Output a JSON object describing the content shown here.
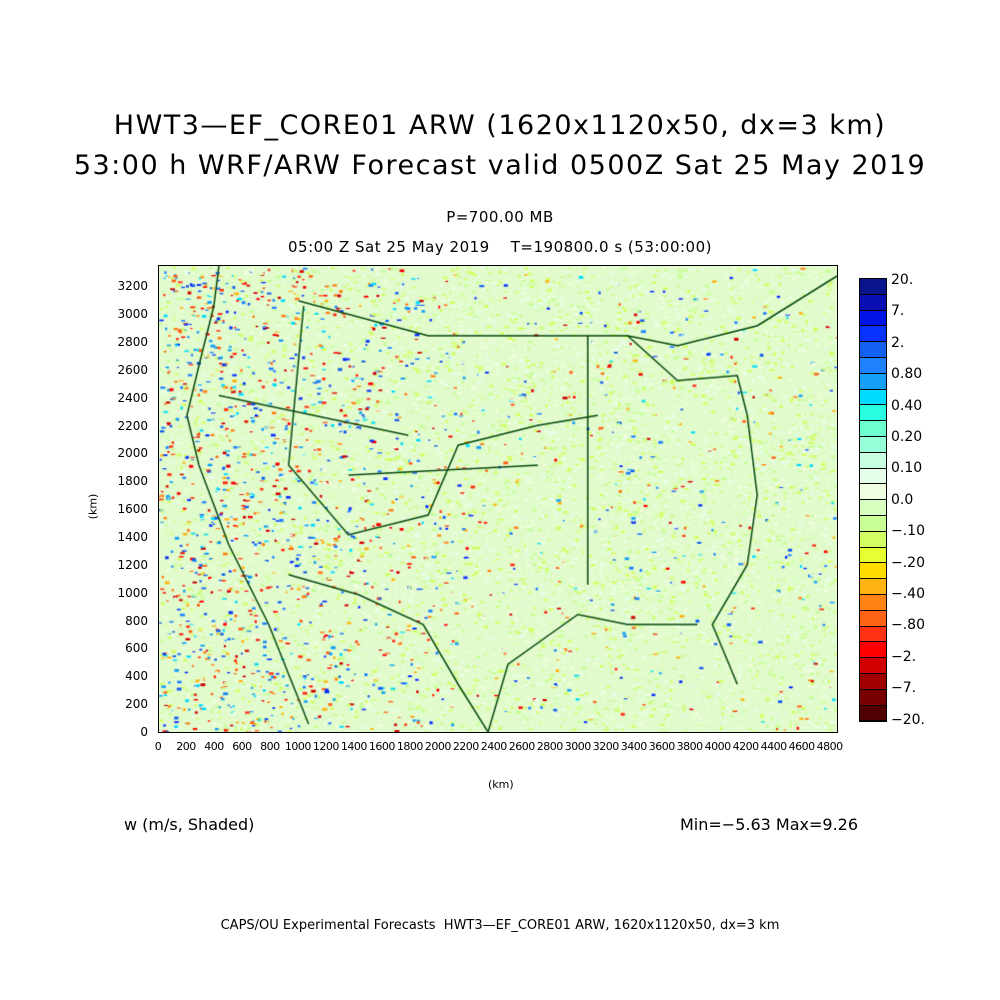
{
  "title": {
    "line1": "HWT3—EF_CORE01 ARW (1620x1120x50, dx=3 km)",
    "line2": "53:00 h WRF/ARW Forecast valid 0500Z Sat 25 May 2019"
  },
  "level": "P=700.00 MB",
  "time": "05:00 Z Sat 25 May 2019    T=190800.0 s (53:00:00)",
  "axes": {
    "x_label": "(km)",
    "y_label": "(km)",
    "x_range": [
      0,
      4860
    ],
    "y_range": [
      0,
      3360
    ],
    "x_ticks": [
      "0",
      "200",
      "400",
      "600",
      "800",
      "1000",
      "1200",
      "1400",
      "1600",
      "1800",
      "2000",
      "2200",
      "2400",
      "2600",
      "2800",
      "3000",
      "3200",
      "3400",
      "3600",
      "3800",
      "4000",
      "4200",
      "4400",
      "4600",
      "4800"
    ],
    "y_ticks": [
      "0",
      "200",
      "400",
      "600",
      "800",
      "1000",
      "1200",
      "1400",
      "1600",
      "1800",
      "2000",
      "2200",
      "2400",
      "2600",
      "2800",
      "3000",
      "3200"
    ]
  },
  "colorbar": {
    "labels": [
      "20.",
      "7.",
      "2.",
      "0.80",
      "0.40",
      "0.20",
      "0.10",
      "0.0",
      "−.10",
      "−.20",
      "−.40",
      "−.80",
      "−2.",
      "−7.",
      "−20."
    ],
    "colors": [
      "#0a148c",
      "#0a0fb4",
      "#0014e6",
      "#0a32ff",
      "#1460f0",
      "#1e82ff",
      "#14a0f5",
      "#00dcff",
      "#28ffe0",
      "#6effd0",
      "#96ffd8",
      "#c8ffe0",
      "#e6ffe8",
      "#f0ffe0",
      "#d8ffc0",
      "#c8ff96",
      "#d2ff64",
      "#e6ff32",
      "#ffdc00",
      "#ffb414",
      "#ff8214",
      "#ff6414",
      "#ff3214",
      "#ff0000",
      "#d20000",
      "#a00000",
      "#780000",
      "#500000"
    ]
  },
  "variable": "w (m/s, Shaded)",
  "minmax": "Min=−5.63 Max=9.26",
  "footer": "CAPS/OU Experimental Forecasts  HWT3—EF_CORE01 ARW, 1620x1120x50, dx=3 km"
}
